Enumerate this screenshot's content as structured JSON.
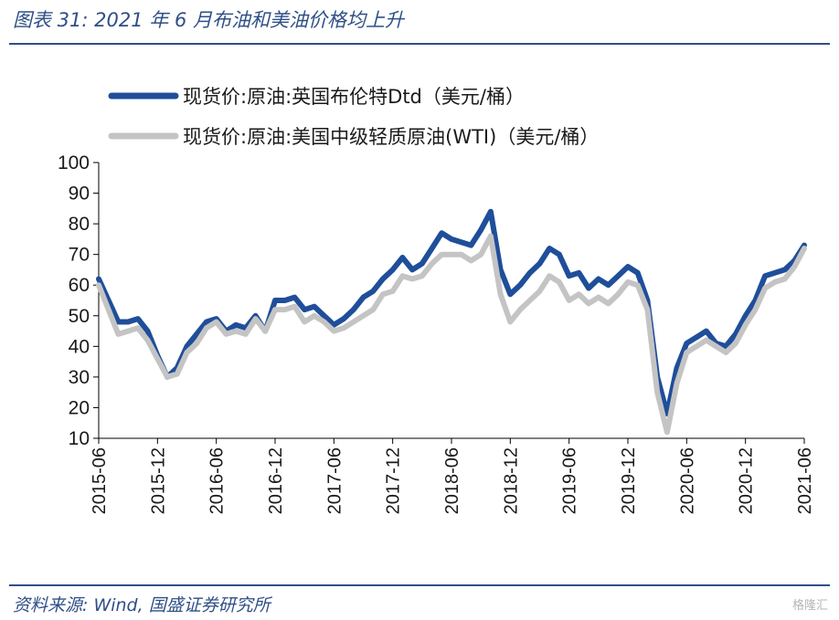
{
  "figure": {
    "title": "图表 31: 2021 年 6 月布油和美油价格均上升",
    "source": "资料来源: Wind, 国盛证券研究所",
    "watermark": "格隆汇"
  },
  "chart_data": {
    "type": "line",
    "title": "",
    "xlabel": "",
    "ylabel": "",
    "ylim": [
      10,
      100
    ],
    "yticks": [
      10,
      20,
      30,
      40,
      50,
      60,
      70,
      80,
      90,
      100
    ],
    "xticks": [
      "2015-06",
      "2015-12",
      "2016-06",
      "2016-12",
      "2017-06",
      "2017-12",
      "2018-06",
      "2018-12",
      "2019-06",
      "2019-12",
      "2020-06",
      "2020-12",
      "2021-06"
    ],
    "legend_position": "top-left",
    "grid": false,
    "x": [
      "2015-06",
      "2015-07",
      "2015-08",
      "2015-09",
      "2015-10",
      "2015-11",
      "2015-12",
      "2016-01",
      "2016-02",
      "2016-03",
      "2016-04",
      "2016-05",
      "2016-06",
      "2016-07",
      "2016-08",
      "2016-09",
      "2016-10",
      "2016-11",
      "2016-12",
      "2017-01",
      "2017-02",
      "2017-03",
      "2017-04",
      "2017-05",
      "2017-06",
      "2017-07",
      "2017-08",
      "2017-09",
      "2017-10",
      "2017-11",
      "2017-12",
      "2018-01",
      "2018-02",
      "2018-03",
      "2018-04",
      "2018-05",
      "2018-06",
      "2018-07",
      "2018-08",
      "2018-09",
      "2018-10",
      "2018-11",
      "2018-12",
      "2019-01",
      "2019-02",
      "2019-03",
      "2019-04",
      "2019-05",
      "2019-06",
      "2019-07",
      "2019-08",
      "2019-09",
      "2019-10",
      "2019-11",
      "2019-12",
      "2020-01",
      "2020-02",
      "2020-03",
      "2020-04",
      "2020-05",
      "2020-06",
      "2020-07",
      "2020-08",
      "2020-09",
      "2020-10",
      "2020-11",
      "2020-12",
      "2021-01",
      "2021-02",
      "2021-03",
      "2021-04",
      "2021-05",
      "2021-06"
    ],
    "series": [
      {
        "name": "现货价:原油:英国布伦特Dtd（美元/桶）",
        "color": "#1f4e9a",
        "values": [
          62,
          55,
          48,
          48,
          49,
          45,
          37,
          30,
          33,
          40,
          44,
          48,
          49,
          45,
          47,
          46,
          50,
          45,
          55,
          55,
          56,
          52,
          53,
          50,
          47,
          49,
          52,
          56,
          58,
          62,
          65,
          69,
          65,
          67,
          72,
          77,
          75,
          74,
          73,
          78,
          84,
          65,
          57,
          60,
          64,
          67,
          72,
          70,
          63,
          64,
          59,
          62,
          60,
          63,
          66,
          64,
          55,
          30,
          18,
          33,
          41,
          43,
          45,
          41,
          40,
          44,
          50,
          55,
          63,
          64,
          65,
          68,
          73
        ]
      },
      {
        "name": "现货价:原油:美国中级轻质原油(WTI)（美元/桶）",
        "color": "#c4c4c4",
        "values": [
          60,
          52,
          44,
          45,
          46,
          42,
          36,
          30,
          31,
          38,
          41,
          46,
          48,
          44,
          45,
          44,
          49,
          45,
          52,
          52,
          53,
          48,
          50,
          48,
          45,
          46,
          48,
          50,
          52,
          57,
          58,
          63,
          62,
          63,
          67,
          70,
          70,
          70,
          68,
          70,
          76,
          57,
          48,
          52,
          55,
          58,
          63,
          61,
          55,
          57,
          54,
          56,
          54,
          57,
          61,
          60,
          52,
          25,
          12,
          28,
          38,
          40,
          42,
          40,
          38,
          41,
          47,
          52,
          59,
          61,
          62,
          66,
          72
        ]
      }
    ]
  }
}
